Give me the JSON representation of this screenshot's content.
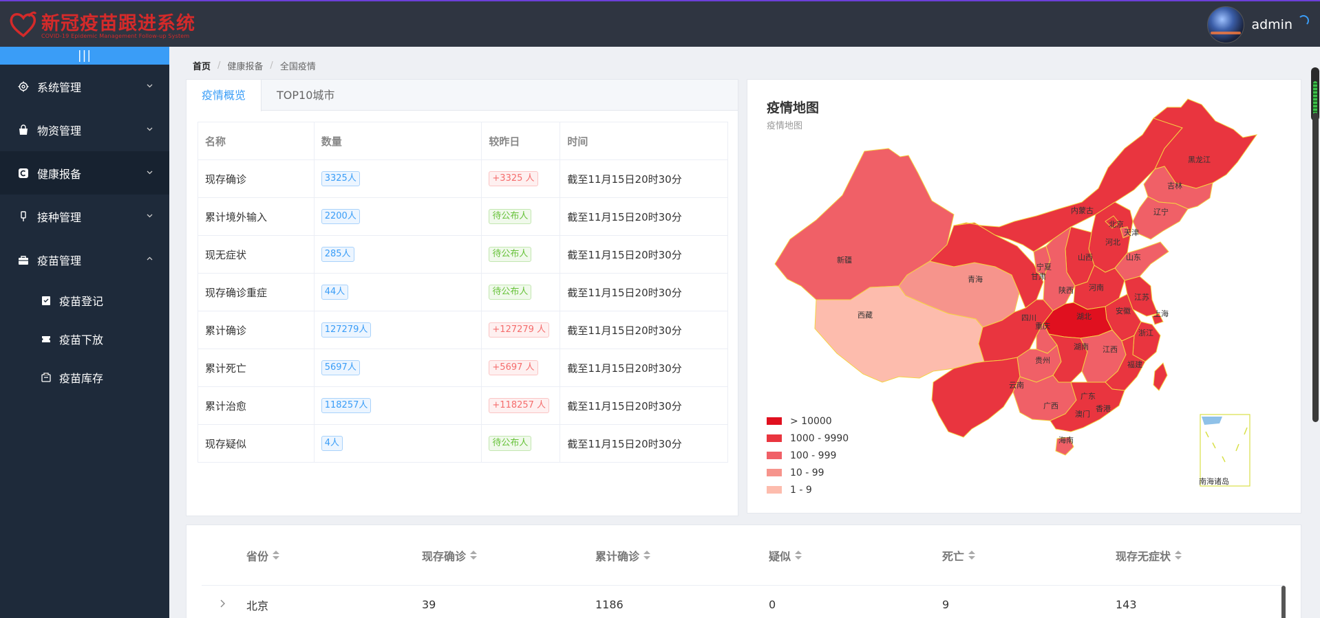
{
  "app": {
    "title": "新冠疫苗跟进系统",
    "subtitle": "COVID-19 Epidemic Management Follow-up System",
    "username": "admin"
  },
  "sidebar": {
    "collapse_label": "|||",
    "items": [
      {
        "label": "系统管理",
        "icon": "gear-icon"
      },
      {
        "label": "物资管理",
        "icon": "bag-icon"
      },
      {
        "label": "健康报备",
        "icon": "report-icon"
      },
      {
        "label": "接种管理",
        "icon": "syringe-icon"
      },
      {
        "label": "疫苗管理",
        "icon": "briefcase-icon"
      }
    ],
    "subitems": [
      {
        "label": "疫苗登记",
        "icon": "clipboard-check-icon"
      },
      {
        "label": "疫苗下放",
        "icon": "ticket-icon"
      },
      {
        "label": "疫苗库存",
        "icon": "inventory-icon"
      }
    ]
  },
  "breadcrumb": [
    "首页",
    "健康报备",
    "全国疫情"
  ],
  "overview": {
    "tabs": [
      "疫情概览",
      "TOP10城市"
    ],
    "columns": [
      "名称",
      "数量",
      "较昨日",
      "时间"
    ],
    "rows": [
      {
        "name": "现存确诊",
        "count": "3325人",
        "change": "+3325 人",
        "change_type": "red",
        "time": "截至11月15日20时30分"
      },
      {
        "name": "累计境外输入",
        "count": "2200人",
        "change": "待公布人",
        "change_type": "green",
        "time": "截至11月15日20时30分"
      },
      {
        "name": "现无症状",
        "count": "285人",
        "change": "待公布人",
        "change_type": "green",
        "time": "截至11月15日20时30分"
      },
      {
        "name": "现存确诊重症",
        "count": "44人",
        "change": "待公布人",
        "change_type": "green",
        "time": "截至11月15日20时30分"
      },
      {
        "name": "累计确诊",
        "count": "127279人",
        "change": "+127279 人",
        "change_type": "red",
        "time": "截至11月15日20时30分"
      },
      {
        "name": "累计死亡",
        "count": "5697人",
        "change": "+5697 人",
        "change_type": "red",
        "time": "截至11月15日20时30分"
      },
      {
        "name": "累计治愈",
        "count": "118257人",
        "change": "+118257 人",
        "change_type": "red",
        "time": "截至11月15日20时30分"
      },
      {
        "name": "现存疑似",
        "count": "4人",
        "change": "待公布人",
        "change_type": "green",
        "time": "截至11月15日20时30分"
      }
    ]
  },
  "map": {
    "title": "疫情地图",
    "subtitle": "疫情地图",
    "legend": [
      {
        "label": "> 10000",
        "color": "#e0101f"
      },
      {
        "label": "1000 - 9990",
        "color": "#e9353f"
      },
      {
        "label": "100 - 999",
        "color": "#f06067"
      },
      {
        "label": "10 - 99",
        "color": "#f6948c"
      },
      {
        "label": "1 - 9",
        "color": "#fdbcad"
      }
    ],
    "regions": [
      "黑龙江",
      "吉林",
      "辽宁",
      "内蒙古",
      "新疆",
      "北京",
      "天津",
      "河北",
      "宁夏",
      "山西",
      "山东",
      "甘肃",
      "青海",
      "陕西",
      "河南",
      "江苏",
      "上海",
      "西藏",
      "四川",
      "湖北",
      "安徽",
      "浙江",
      "重庆",
      "湖南",
      "江西",
      "贵州",
      "福建",
      "云南",
      "广西",
      "广东",
      "香港",
      "澳门",
      "海南",
      "南海诸岛"
    ]
  },
  "province_table": {
    "columns": [
      "省份",
      "现存确诊",
      "累计确诊",
      "疑似",
      "死亡",
      "现存无症状"
    ],
    "rows": [
      {
        "province": "北京",
        "current": "39",
        "total": "1186",
        "suspect": "0",
        "death": "9",
        "asymptomatic": "143"
      }
    ]
  }
}
